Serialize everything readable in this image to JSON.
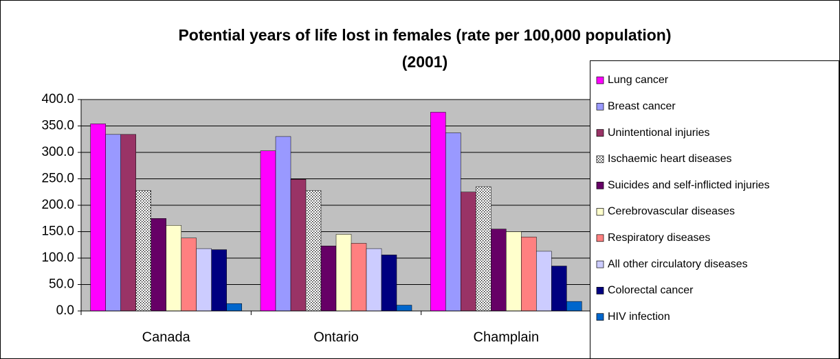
{
  "chart_data": {
    "type": "bar",
    "title": [
      "Potential years of life lost in females  (rate per 100,000 population)",
      "(2001)"
    ],
    "categories": [
      "Canada",
      "Ontario",
      "Champlain"
    ],
    "series": [
      {
        "name": "Lung cancer",
        "color": "#ff00ff",
        "values": [
          354,
          303,
          376
        ]
      },
      {
        "name": "Breast cancer",
        "color": "#9999ff",
        "values": [
          334,
          330,
          337
        ]
      },
      {
        "name": "Unintentional injuries",
        "color": "#993366",
        "values": [
          334,
          249,
          225
        ]
      },
      {
        "name": "Ischaemic heart diseases",
        "color": "#ffffff",
        "pattern": "dotted",
        "values": [
          228,
          228,
          235
        ]
      },
      {
        "name": "Suicides and self-inflicted injuries",
        "color": "#660066",
        "values": [
          175,
          123,
          155
        ]
      },
      {
        "name": "Cerebrovascular diseases",
        "color": "#ffffcc",
        "values": [
          162,
          145,
          150
        ]
      },
      {
        "name": "Respiratory diseases",
        "color": "#ff8080",
        "values": [
          138,
          128,
          140
        ]
      },
      {
        "name": "All other circulatory diseases",
        "color": "#ccccff",
        "values": [
          118,
          118,
          113
        ]
      },
      {
        "name": "Colorectal cancer",
        "color": "#000080",
        "values": [
          116,
          106,
          85
        ]
      },
      {
        "name": "HIV infection",
        "color": "#0066cc",
        "values": [
          14,
          11,
          18
        ]
      }
    ],
    "ylim": [
      0,
      400
    ],
    "yticks": [
      {
        "value": 0,
        "label": "0.0"
      },
      {
        "value": 50,
        "label": "50.0"
      },
      {
        "value": 100,
        "label": "100.0"
      },
      {
        "value": 150,
        "label": "150.0"
      },
      {
        "value": 200,
        "label": "200.0"
      },
      {
        "value": 250,
        "label": "250.0"
      },
      {
        "value": 300,
        "label": "300.0"
      },
      {
        "value": 350,
        "label": "350.0"
      },
      {
        "value": 400,
        "label": "400.0"
      }
    ],
    "grid": true,
    "plot_background": "#c0c0c0",
    "legend": "right"
  }
}
